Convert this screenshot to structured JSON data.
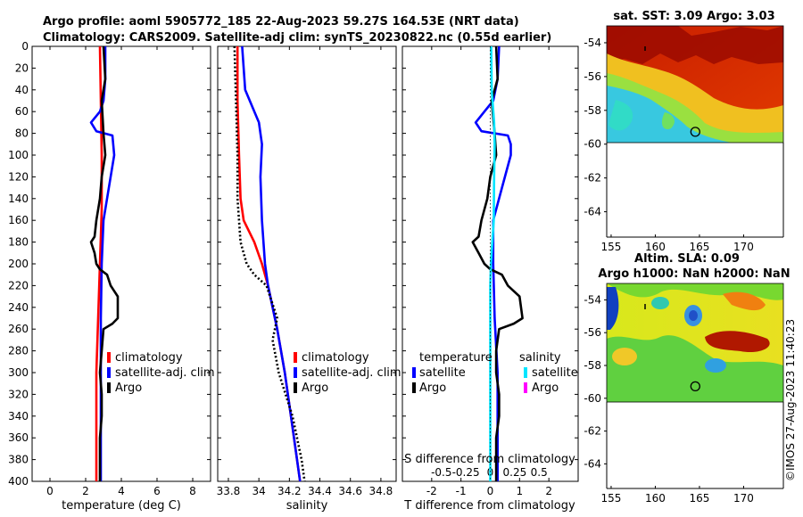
{
  "header": {
    "title_line1": "Argo profile: aoml 5905772_185 22-Aug-2023 59.27S 164.53E (NRT data)",
    "title_line2": "Climatology: CARS2009. Satellite-adj clim: synTS_20230822.nc (0.55d earlier)"
  },
  "copyright": "©IMOS 27-Aug-2023 11:40:23",
  "colors": {
    "climatology": "#ff0000",
    "satellite": "#0000ff",
    "argo": "#000000",
    "salinity_satellite": "#00e5ff",
    "salinity_argo": "#ff00ff"
  },
  "chart_data": [
    {
      "id": "temperature",
      "type": "line",
      "xlabel": "temperature (deg C)",
      "ylabel": "depth",
      "xlim": [
        -1,
        9
      ],
      "ylim": [
        400,
        0
      ],
      "xticks": [
        "0",
        "2",
        "4",
        "6",
        "8"
      ],
      "xtick_values": [
        0,
        2,
        4,
        6,
        8
      ],
      "yticks": [
        "0",
        "20",
        "40",
        "60",
        "80",
        "100",
        "120",
        "140",
        "160",
        "180",
        "200",
        "220",
        "240",
        "260",
        "280",
        "300",
        "320",
        "340",
        "360",
        "380",
        "400"
      ],
      "ytick_values": [
        0,
        20,
        40,
        60,
        80,
        100,
        120,
        140,
        160,
        180,
        200,
        220,
        240,
        260,
        280,
        300,
        320,
        340,
        360,
        380,
        400
      ],
      "legend": [
        {
          "label": "climatology",
          "color": "#ff0000"
        },
        {
          "label": "satellite-adj. clim",
          "color": "#0000ff"
        },
        {
          "label": "Argo",
          "color": "#000000"
        }
      ],
      "series": [
        {
          "name": "climatology",
          "color": "#ff0000",
          "dotted": false,
          "depth": [
            0,
            50,
            100,
            150,
            200,
            250,
            300,
            350,
            400
          ],
          "values": [
            2.8,
            2.85,
            2.9,
            2.9,
            2.8,
            2.7,
            2.6,
            2.6,
            2.6
          ]
        },
        {
          "name": "satellite-adj. clim",
          "color": "#0000ff",
          "dotted": false,
          "depth": [
            0,
            30,
            50,
            60,
            70,
            78,
            82,
            100,
            130,
            160,
            200,
            250,
            300,
            350,
            400
          ],
          "values": [
            3.1,
            3.1,
            3.0,
            2.8,
            2.3,
            2.6,
            3.5,
            3.6,
            3.3,
            3.0,
            2.9,
            2.85,
            2.85,
            2.85,
            2.85
          ]
        },
        {
          "name": "Argo",
          "color": "#000000",
          "dotted": false,
          "depth": [
            0,
            30,
            50,
            80,
            100,
            120,
            140,
            160,
            175,
            180,
            190,
            200,
            205,
            210,
            220,
            230,
            250,
            255,
            260,
            280,
            300,
            320,
            340,
            360,
            380,
            400
          ],
          "values": [
            3.0,
            3.1,
            2.9,
            3.0,
            3.1,
            2.9,
            2.8,
            2.6,
            2.5,
            2.3,
            2.5,
            2.6,
            2.8,
            3.2,
            3.4,
            3.8,
            3.8,
            3.5,
            3.0,
            2.9,
            2.8,
            2.9,
            2.9,
            2.8,
            2.8,
            2.8
          ]
        }
      ]
    },
    {
      "id": "salinity",
      "type": "line",
      "xlabel": "salinity",
      "ylabel": "depth",
      "xlim": [
        33.73,
        34.9
      ],
      "ylim": [
        400,
        0
      ],
      "xticks": [
        "33.8",
        "34",
        "34.2",
        "34.4",
        "34.6",
        "34.8"
      ],
      "xtick_values": [
        33.8,
        34.0,
        34.2,
        34.4,
        34.6,
        34.8
      ],
      "legend": [
        {
          "label": "climatology",
          "color": "#ff0000"
        },
        {
          "label": "satellite-adj. clim",
          "color": "#0000ff"
        },
        {
          "label": "Argo",
          "color": "#000000"
        }
      ],
      "series": [
        {
          "name": "climatology",
          "color": "#ff0000",
          "dotted": false,
          "depth": [
            0,
            50,
            100,
            140,
            160,
            180,
            200,
            220,
            260,
            300,
            350,
            400
          ],
          "values": [
            33.86,
            33.86,
            33.87,
            33.88,
            33.9,
            33.97,
            34.02,
            34.06,
            34.12,
            34.17,
            34.22,
            34.27
          ]
        },
        {
          "name": "satellite-adj. clim",
          "color": "#0000ff",
          "dotted": false,
          "depth": [
            0,
            40,
            70,
            90,
            120,
            160,
            200,
            220,
            260,
            300,
            350,
            400
          ],
          "values": [
            33.89,
            33.91,
            34.0,
            34.02,
            34.01,
            34.02,
            34.04,
            34.06,
            34.12,
            34.17,
            34.22,
            34.27
          ]
        },
        {
          "name": "Argo",
          "color": "#000000",
          "dotted": true,
          "depth": [
            0,
            50,
            100,
            140,
            160,
            180,
            200,
            210,
            220,
            250,
            270,
            300,
            340,
            380,
            400
          ],
          "values": [
            33.84,
            33.85,
            33.86,
            33.86,
            33.87,
            33.88,
            33.92,
            33.97,
            34.05,
            34.12,
            34.09,
            34.13,
            34.22,
            34.28,
            34.3
          ]
        }
      ]
    },
    {
      "id": "differences",
      "type": "line",
      "xlabel": "T difference from climatology",
      "top_label": "S difference from climatology",
      "ylabel": "depth",
      "xlim": [
        -3,
        3
      ],
      "ylim": [
        400,
        0
      ],
      "xticks": [
        "-2",
        "-1",
        "0",
        "1",
        "2"
      ],
      "xtick_values": [
        -2,
        -1,
        0,
        1,
        2
      ],
      "sticks": [
        "-0.5",
        "-0.25",
        "0",
        "0.25",
        "0.5"
      ],
      "stick_values": [
        -0.5,
        -0.25,
        0,
        0.25,
        0.5
      ],
      "legend_temperature": {
        "title": "temperature",
        "items": [
          {
            "label": "satellite",
            "color": "#0000ff"
          },
          {
            "label": "Argo",
            "color": "#000000"
          }
        ]
      },
      "legend_salinity": {
        "title": "salinity",
        "items": [
          {
            "label": "satellite",
            "color": "#00e5ff"
          },
          {
            "label": "Argo",
            "color": "#ff00ff"
          }
        ]
      },
      "series": [
        {
          "name": "temperature satellite",
          "color": "#0000ff",
          "dotted": false,
          "depth": [
            0,
            30,
            50,
            60,
            70,
            78,
            82,
            90,
            100,
            130,
            160,
            200,
            250,
            300,
            350,
            400
          ],
          "values": [
            0.3,
            0.25,
            0.1,
            -0.2,
            -0.5,
            -0.3,
            0.6,
            0.7,
            0.7,
            0.4,
            0.1,
            0.1,
            0.15,
            0.25,
            0.25,
            0.25
          ]
        },
        {
          "name": "temperature Argo",
          "color": "#000000",
          "dotted": false,
          "depth": [
            0,
            30,
            50,
            80,
            100,
            120,
            140,
            160,
            175,
            180,
            190,
            200,
            205,
            210,
            220,
            230,
            250,
            255,
            260,
            280,
            300,
            320,
            340,
            360,
            380,
            400
          ],
          "values": [
            0.2,
            0.25,
            0.05,
            0.15,
            0.2,
            0.0,
            -0.1,
            -0.3,
            -0.4,
            -0.6,
            -0.4,
            -0.2,
            0.0,
            0.4,
            0.6,
            1.0,
            1.1,
            0.8,
            0.3,
            0.2,
            0.2,
            0.3,
            0.3,
            0.2,
            0.2,
            0.2
          ]
        },
        {
          "name": "salinity satellite",
          "color": "#00e5ff",
          "dotted": false,
          "depth": [
            0,
            40,
            70,
            90,
            120,
            160,
            200,
            220,
            260,
            300,
            350,
            400
          ],
          "values": [
            0.03,
            0.05,
            0.13,
            0.15,
            0.13,
            0.12,
            0.02,
            0.0,
            0.0,
            0.0,
            0.0,
            0.0
          ]
        },
        {
          "name": "zero line",
          "color": "#000000",
          "dotted": true,
          "depth": [
            0,
            400
          ],
          "values": [
            0,
            0
          ]
        }
      ]
    },
    {
      "id": "sst_map",
      "type": "heatmap",
      "title": "sat. SST: 3.09 Argo: 3.03",
      "xlim": [
        154.5,
        174.5
      ],
      "ylim": [
        -65.5,
        -53
      ],
      "xticks": [
        "155",
        "160",
        "165",
        "170"
      ],
      "xtick_values": [
        155,
        160,
        165,
        170
      ],
      "yticks": [
        "-54",
        "-56",
        "-58",
        "-60",
        "-62",
        "-64"
      ],
      "ytick_values": [
        -54,
        -56,
        -58,
        -60,
        -62,
        -64
      ],
      "data_extent_lat": [
        -60,
        -53
      ],
      "float_position": {
        "lon": 164.53,
        "lat": -59.27
      }
    },
    {
      "id": "sla_map",
      "type": "heatmap",
      "title": "Altim. SLA: 0.09",
      "subtitle": "Argo h1000: NaN h2000: NaN",
      "xlim": [
        154.5,
        174.5
      ],
      "ylim": [
        -65.5,
        -53
      ],
      "xticks": [
        "155",
        "160",
        "165",
        "170"
      ],
      "xtick_values": [
        155,
        160,
        165,
        170
      ],
      "yticks": [
        "-54",
        "-56",
        "-58",
        "-60",
        "-62",
        "-64"
      ],
      "ytick_values": [
        -54,
        -56,
        -58,
        -60,
        -62,
        -64
      ],
      "data_extent_lat": [
        -60,
        -53
      ],
      "float_position": {
        "lon": 164.53,
        "lat": -59.27
      }
    }
  ]
}
